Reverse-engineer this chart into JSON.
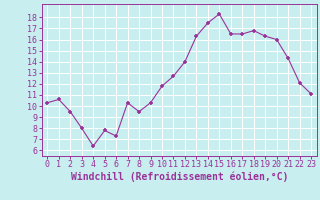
{
  "x": [
    0,
    1,
    2,
    3,
    4,
    5,
    6,
    7,
    8,
    9,
    10,
    11,
    12,
    13,
    14,
    15,
    16,
    17,
    18,
    19,
    20,
    21,
    22,
    23
  ],
  "y": [
    10.3,
    10.6,
    9.5,
    8.0,
    6.4,
    7.8,
    7.3,
    10.3,
    9.5,
    10.3,
    11.8,
    12.7,
    14.0,
    16.3,
    17.5,
    18.3,
    16.5,
    16.5,
    16.8,
    16.3,
    16.0,
    14.3,
    12.1,
    11.1
  ],
  "line_color": "#993399",
  "marker": "+",
  "marker_size": 3,
  "marker_linewidth": 1.2,
  "line_width": 0.8,
  "xlabel": "Windchill (Refroidissement éolien,°C)",
  "xlabel_fontsize": 7,
  "xlabel_color": "#993399",
  "ylabel_ticks": [
    6,
    7,
    8,
    9,
    10,
    11,
    12,
    13,
    14,
    15,
    16,
    17,
    18
  ],
  "xtick_labels": [
    "0",
    "1",
    "2",
    "3",
    "4",
    "5",
    "6",
    "7",
    "8",
    "9",
    "10",
    "11",
    "12",
    "13",
    "14",
    "15",
    "16",
    "17",
    "18",
    "19",
    "20",
    "21",
    "22",
    "23"
  ],
  "ylim": [
    5.5,
    19.2
  ],
  "xlim": [
    -0.5,
    23.5
  ],
  "background_color": "#c8eef0",
  "grid_color": "#ffffff",
  "tick_color": "#993399",
  "tick_fontsize": 6,
  "spine_color": "#993399"
}
